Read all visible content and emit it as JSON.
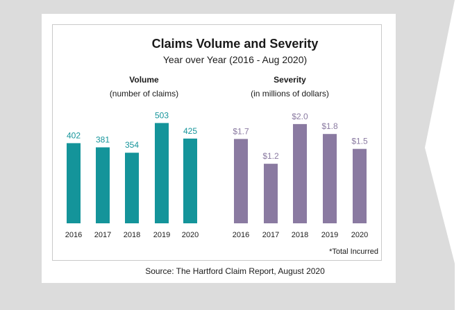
{
  "title": "Claims Volume and Severity",
  "subtitle": "Year over Year (2016 - Aug 2020)",
  "note": "*Total Incurred",
  "source": "Source: The Hartford Claim Report, August 2020",
  "colors": {
    "volume": "#14949a",
    "severity": "#8a7aa1",
    "background": "#dcdcdc",
    "volume_label": "#14949a",
    "severity_label": "#8a7aa1"
  },
  "chart_data": [
    {
      "type": "bar",
      "title": "Volume",
      "subtitle": "(number of claims)",
      "categories": [
        "2016",
        "2017",
        "2018",
        "2019",
        "2020"
      ],
      "values": [
        402,
        381,
        354,
        503,
        425
      ],
      "labels": [
        "402",
        "381",
        "354",
        "503",
        "425"
      ],
      "ylim": [
        0,
        560
      ]
    },
    {
      "type": "bar",
      "title": "Severity",
      "subtitle": "(in millions of dollars)",
      "categories": [
        "2016",
        "2017",
        "2018",
        "2019",
        "2020"
      ],
      "values": [
        1.7,
        1.2,
        2.0,
        1.8,
        1.5
      ],
      "labels": [
        "$1.7",
        "$1.2",
        "$2.0",
        "$1.8",
        "$1.5"
      ],
      "ylim": [
        0,
        2.25
      ]
    }
  ]
}
